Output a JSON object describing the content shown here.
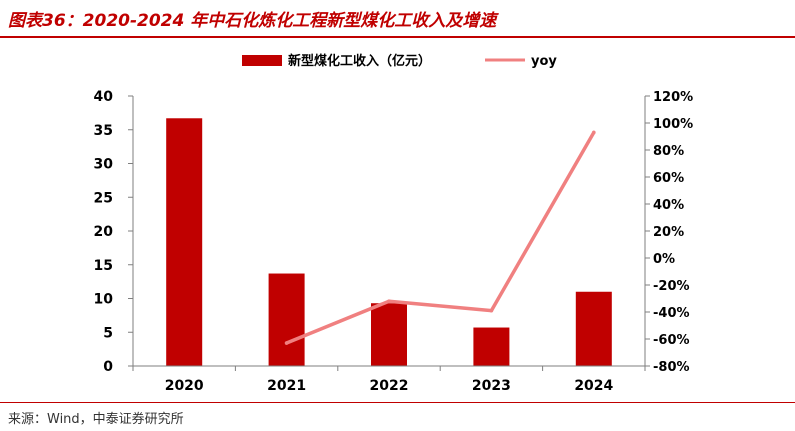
{
  "title": "图表36：2020-2024 年中石化炼化工程新型煤化工收入及增速",
  "source": "来源：Wind，中泰证券研究所",
  "colors": {
    "bar": "#c00000",
    "line": "#f08080",
    "accent": "#c00000"
  },
  "chart_data": {
    "type": "bar",
    "categories": [
      "2020",
      "2021",
      "2022",
      "2023",
      "2024"
    ],
    "series": [
      {
        "name": "新型煤化工收入（亿元）",
        "type": "bar",
        "axis": "left",
        "values": [
          36.7,
          13.7,
          9.3,
          5.7,
          11.0
        ]
      },
      {
        "name": "yoy",
        "type": "line",
        "axis": "right",
        "values": [
          null,
          -63,
          -32,
          -39,
          93
        ]
      }
    ],
    "y_left": {
      "ticks": [
        "0",
        "5",
        "10",
        "15",
        "20",
        "25",
        "30",
        "35",
        "40"
      ],
      "ylim": [
        0,
        40
      ]
    },
    "y_right": {
      "ticks": [
        "-80%",
        "-60%",
        "-40%",
        "-20%",
        "0%",
        "20%",
        "40%",
        "60%",
        "80%",
        "100%",
        "120%"
      ],
      "ylim": [
        -80,
        120
      ]
    },
    "legend_position": "top-center",
    "grid": false
  }
}
